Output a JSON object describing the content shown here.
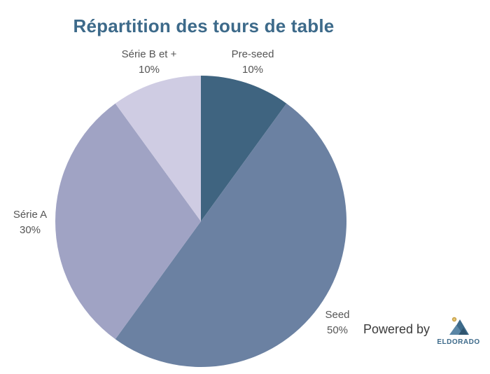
{
  "chart_data": {
    "type": "pie",
    "title": "Répartition des tours de table",
    "slices": [
      {
        "label": "Pre-seed",
        "value": 10,
        "display": "10%",
        "color": "#3f6480"
      },
      {
        "label": "Seed",
        "value": 50,
        "display": "50%",
        "color": "#6b81a2"
      },
      {
        "label": "Série A",
        "value": 30,
        "display": "30%",
        "color": "#a0a3c4"
      },
      {
        "label": "Série B et +",
        "value": 10,
        "display": "10%",
        "color": "#cfcce3"
      }
    ],
    "start": "top",
    "direction": "clockwise"
  },
  "branding": {
    "powered_by": "Powered by",
    "logo_text": "ELDORADO",
    "logo_colors": {
      "mountain": "#3d6a8a",
      "sun": "#c9a24a"
    }
  }
}
